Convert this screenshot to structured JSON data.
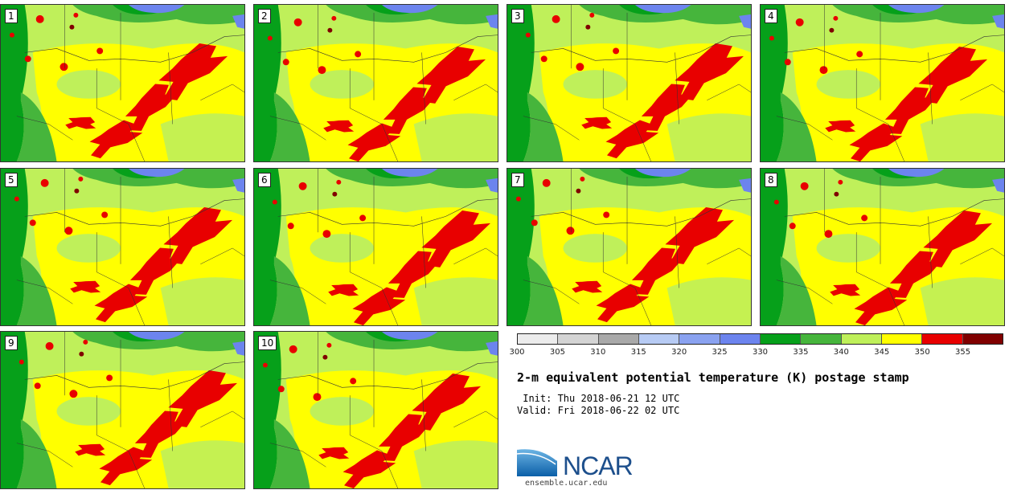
{
  "panels": [
    {
      "label": "1"
    },
    {
      "label": "2"
    },
    {
      "label": "3"
    },
    {
      "label": "4"
    },
    {
      "label": "5"
    },
    {
      "label": "6"
    },
    {
      "label": "7"
    },
    {
      "label": "8"
    },
    {
      "label": "9"
    },
    {
      "label": "10"
    }
  ],
  "colorbar": {
    "colors": [
      "#ececec",
      "#d4d4d4",
      "#a9a9a9",
      "#b7cbf4",
      "#8aa2f0",
      "#6c84ee",
      "#06a01a",
      "#46b53c",
      "#bff05a",
      "#ffff00",
      "#e80000",
      "#800000"
    ],
    "ticks": [
      "300",
      "305",
      "310",
      "315",
      "320",
      "325",
      "330",
      "335",
      "340",
      "345",
      "350",
      "355"
    ]
  },
  "title": "2-m equivalent potential temperature (K) postage stamp",
  "init": " Init: Thu 2018-06-21 12 UTC",
  "valid": "Valid: Fri 2018-06-22 02 UTC",
  "logo": {
    "text": "NCAR"
  },
  "website": "ensemble.ucar.edu"
}
